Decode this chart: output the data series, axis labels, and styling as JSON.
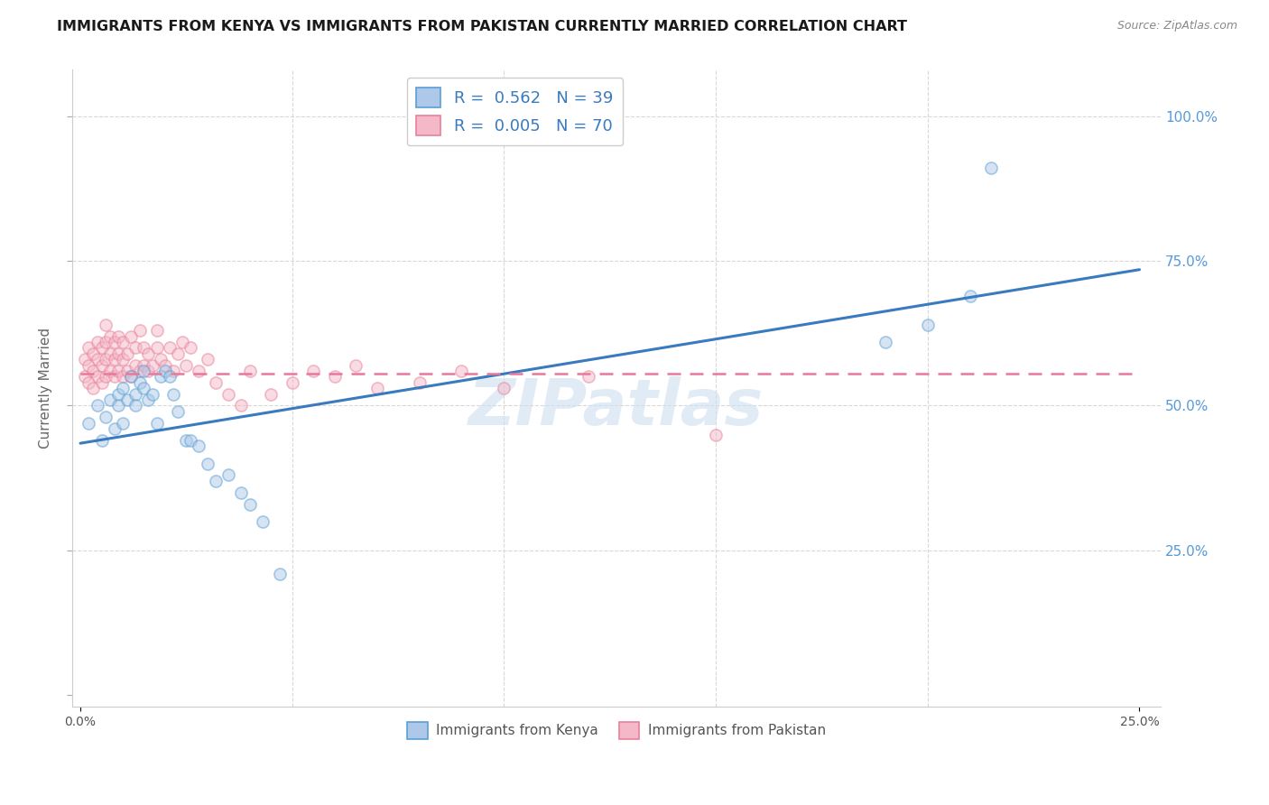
{
  "title": "IMMIGRANTS FROM KENYA VS IMMIGRANTS FROM PAKISTAN CURRENTLY MARRIED CORRELATION CHART",
  "source": "Source: ZipAtlas.com",
  "ylabel": "Currently Married",
  "y_ticks": [
    0.0,
    0.25,
    0.5,
    0.75,
    1.0
  ],
  "y_tick_labels": [
    "",
    "25.0%",
    "50.0%",
    "75.0%",
    "100.0%"
  ],
  "xlim": [
    -0.002,
    0.255
  ],
  "ylim": [
    -0.02,
    1.08
  ],
  "kenya_R": 0.562,
  "kenya_N": 39,
  "pakistan_R": 0.005,
  "pakistan_N": 70,
  "kenya_color": "#adc8e8",
  "kenya_edge_color": "#5a9fd4",
  "kenya_line_color": "#3a7abf",
  "pakistan_color": "#f5b8c8",
  "pakistan_edge_color": "#e8809a",
  "pakistan_line_color": "#e8789a",
  "kenya_scatter_x": [
    0.002,
    0.004,
    0.005,
    0.006,
    0.007,
    0.008,
    0.009,
    0.009,
    0.01,
    0.01,
    0.011,
    0.012,
    0.013,
    0.013,
    0.014,
    0.015,
    0.015,
    0.016,
    0.017,
    0.018,
    0.019,
    0.02,
    0.021,
    0.022,
    0.023,
    0.025,
    0.026,
    0.028,
    0.03,
    0.032,
    0.035,
    0.038,
    0.04,
    0.043,
    0.047,
    0.19,
    0.2,
    0.21,
    0.215
  ],
  "kenya_scatter_y": [
    0.47,
    0.5,
    0.44,
    0.48,
    0.51,
    0.46,
    0.52,
    0.5,
    0.53,
    0.47,
    0.51,
    0.55,
    0.52,
    0.5,
    0.54,
    0.56,
    0.53,
    0.51,
    0.52,
    0.47,
    0.55,
    0.56,
    0.55,
    0.52,
    0.49,
    0.44,
    0.44,
    0.43,
    0.4,
    0.37,
    0.38,
    0.35,
    0.33,
    0.3,
    0.21,
    0.61,
    0.64,
    0.69,
    0.91
  ],
  "pakistan_scatter_x": [
    0.001,
    0.001,
    0.002,
    0.002,
    0.002,
    0.003,
    0.003,
    0.003,
    0.004,
    0.004,
    0.004,
    0.005,
    0.005,
    0.005,
    0.006,
    0.006,
    0.006,
    0.006,
    0.007,
    0.007,
    0.007,
    0.008,
    0.008,
    0.008,
    0.009,
    0.009,
    0.009,
    0.01,
    0.01,
    0.01,
    0.011,
    0.011,
    0.012,
    0.012,
    0.013,
    0.013,
    0.014,
    0.014,
    0.015,
    0.015,
    0.016,
    0.016,
    0.017,
    0.018,
    0.018,
    0.019,
    0.02,
    0.021,
    0.022,
    0.023,
    0.024,
    0.025,
    0.026,
    0.028,
    0.03,
    0.032,
    0.035,
    0.038,
    0.04,
    0.045,
    0.05,
    0.055,
    0.06,
    0.065,
    0.07,
    0.08,
    0.09,
    0.1,
    0.12,
    0.15
  ],
  "pakistan_scatter_y": [
    0.55,
    0.58,
    0.54,
    0.57,
    0.6,
    0.53,
    0.56,
    0.59,
    0.55,
    0.58,
    0.61,
    0.54,
    0.57,
    0.6,
    0.55,
    0.58,
    0.61,
    0.64,
    0.56,
    0.59,
    0.62,
    0.55,
    0.58,
    0.61,
    0.56,
    0.59,
    0.62,
    0.55,
    0.58,
    0.61,
    0.56,
    0.59,
    0.55,
    0.62,
    0.57,
    0.6,
    0.56,
    0.63,
    0.57,
    0.6,
    0.56,
    0.59,
    0.57,
    0.6,
    0.63,
    0.58,
    0.57,
    0.6,
    0.56,
    0.59,
    0.61,
    0.57,
    0.6,
    0.56,
    0.58,
    0.54,
    0.52,
    0.5,
    0.56,
    0.52,
    0.54,
    0.56,
    0.55,
    0.57,
    0.53,
    0.54,
    0.56,
    0.53,
    0.55,
    0.45
  ],
  "kenya_line_x": [
    0.0,
    0.25
  ],
  "kenya_line_y": [
    0.435,
    0.735
  ],
  "pakistan_line_x": [
    0.0,
    0.25
  ],
  "pakistan_line_y": [
    0.555,
    0.555
  ],
  "watermark": "ZIPatlas",
  "background_color": "#ffffff",
  "grid_color": "#d8d8d8",
  "title_fontsize": 11.5,
  "axis_label_fontsize": 11,
  "tick_fontsize": 10,
  "legend_fontsize": 13,
  "marker_size": 90,
  "marker_alpha": 0.5,
  "marker_linewidth": 1.2
}
